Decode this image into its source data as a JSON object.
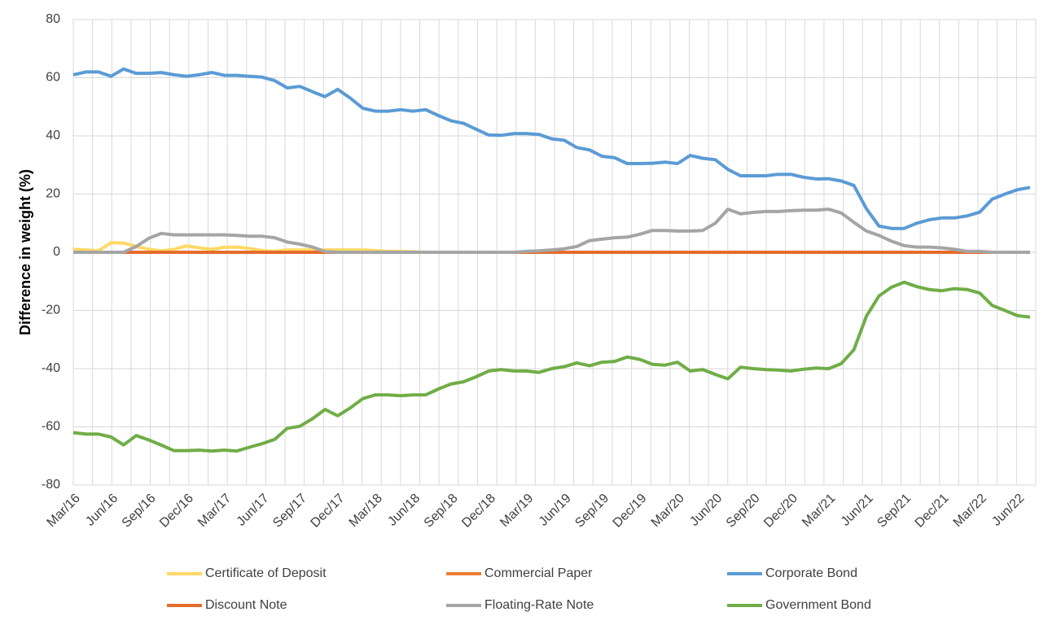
{
  "chart_data": {
    "type": "line",
    "y_label": "Difference in weight (%)",
    "categories": [
      "Mar/16",
      null,
      null,
      "Jun/16",
      null,
      null,
      "Sep/16",
      null,
      null,
      "Dec/16",
      null,
      null,
      "Mar/17",
      null,
      null,
      "Jun/17",
      null,
      null,
      "Sep/17",
      null,
      null,
      "Dec/17",
      null,
      null,
      "Mar/18",
      null,
      null,
      "Jun/18",
      null,
      null,
      "Sep/18",
      null,
      null,
      "Dec/18",
      null,
      null,
      "Mar/19",
      null,
      null,
      "Jun/19",
      null,
      null,
      "Sep/19",
      null,
      null,
      "Dec/19",
      null,
      null,
      "Mar/20",
      null,
      null,
      "Jun/20",
      null,
      null,
      "Sep/20",
      null,
      null,
      "Dec/20",
      null,
      null,
      "Mar/21",
      null,
      null,
      "Jun/21",
      null,
      null,
      "Sep/21",
      null,
      null,
      "Dec/21",
      null,
      null,
      "Mar/22",
      null,
      null,
      "Jun/22",
      null
    ],
    "ylim": [
      -80,
      80
    ],
    "yticks": [
      -80,
      -60,
      -40,
      -20,
      0,
      20,
      40,
      60,
      80
    ],
    "grid": true,
    "legend": "bottom",
    "series": [
      {
        "name": "Certificate of Deposit",
        "color": "#ffd966",
        "values": [
          1,
          0.8,
          0.5,
          3.3,
          3.2,
          2,
          1,
          0.5,
          1,
          2.2,
          1.5,
          1,
          1.7,
          1.8,
          1.3,
          0.6,
          0.3,
          0.8,
          0.8,
          0.8,
          0.8,
          0.8,
          0.8,
          0.8,
          0.6,
          0.3,
          0.3,
          0.2,
          0,
          0,
          0,
          0,
          0,
          0,
          0,
          0,
          0,
          0,
          0,
          0,
          0,
          0,
          0,
          0,
          0,
          0,
          0,
          0,
          0,
          0,
          0,
          0,
          0,
          0,
          0,
          0,
          0,
          0,
          0,
          0,
          0,
          0,
          0,
          0,
          0,
          0,
          0,
          0,
          0,
          0,
          0,
          0,
          0,
          0,
          0,
          0,
          0
        ]
      },
      {
        "name": "Commercial Paper",
        "color": "#ed7d31",
        "values": [
          0,
          0,
          0,
          0,
          0,
          0,
          0,
          0,
          0,
          0,
          0,
          0,
          0,
          0,
          0,
          0,
          0,
          0,
          0,
          0,
          0,
          0,
          0,
          0,
          0,
          0,
          0,
          0,
          0,
          0,
          0,
          0,
          0,
          0,
          0,
          0,
          0,
          0,
          0,
          0,
          0,
          0,
          0,
          0,
          0,
          0,
          0,
          0,
          0,
          0,
          0,
          0,
          0,
          0,
          0,
          0,
          0,
          0,
          0,
          0,
          0,
          0,
          0,
          0,
          0,
          0,
          0,
          0,
          0,
          0,
          0,
          0,
          0,
          0,
          0,
          0,
          0
        ]
      },
      {
        "name": "Corporate Bond",
        "color": "#5b9bd5",
        "values": [
          61,
          62,
          62,
          60.5,
          63,
          61.5,
          61.5,
          61.8,
          61,
          60.5,
          61,
          61.8,
          60.8,
          60.8,
          60.5,
          60.2,
          59,
          56.5,
          57,
          55.2,
          53.5,
          56,
          53,
          49.5,
          48.5,
          48.5,
          49,
          48.5,
          49,
          47,
          45.2,
          44.3,
          42.3,
          40.3,
          40.2,
          40.8,
          40.8,
          40.5,
          39,
          38.5,
          36,
          35.2,
          33,
          32.5,
          30.5,
          30.5,
          30.6,
          31,
          30.5,
          33.3,
          32.3,
          31.8,
          28.5,
          26.3,
          26.3,
          26.3,
          26.8,
          26.8,
          25.8,
          25.2,
          25.3,
          24.5,
          23,
          15,
          9,
          8.2,
          8.2,
          10,
          11.2,
          11.8,
          11.8,
          12.5,
          13.8,
          18.3,
          20,
          21.5,
          22.3
        ]
      },
      {
        "name": "Discount Note",
        "color": "#e46c2a",
        "values": [
          0,
          0,
          0,
          0,
          0,
          0,
          0,
          0,
          0,
          0,
          0,
          0,
          0,
          0,
          0,
          0,
          0,
          0,
          0,
          0,
          0,
          0,
          0,
          0,
          0,
          0,
          0,
          0,
          0,
          0,
          0,
          0,
          0,
          0,
          0,
          0,
          0,
          0,
          0,
          0,
          0,
          0,
          0,
          0,
          0,
          0,
          0,
          0,
          0,
          0,
          0,
          0,
          0,
          0,
          0,
          0,
          0,
          0,
          0,
          0,
          0,
          0,
          0,
          0,
          0,
          0,
          0,
          0,
          0,
          0,
          0,
          0,
          0,
          0,
          0,
          0,
          0
        ]
      },
      {
        "name": "Floating-Rate Note",
        "color": "#a5a5a5",
        "values": [
          0,
          0,
          0,
          0,
          0,
          2,
          4.8,
          6.5,
          6,
          6,
          6,
          6,
          6,
          5.8,
          5.5,
          5.5,
          5,
          3.5,
          2.8,
          1.8,
          0.2,
          0,
          0,
          0,
          0,
          0,
          0,
          0,
          0,
          0,
          0,
          0,
          0,
          0,
          0,
          0,
          0.3,
          0.5,
          0.8,
          1.2,
          2,
          4,
          4.5,
          5,
          5.2,
          6.2,
          7.5,
          7.5,
          7.3,
          7.3,
          7.5,
          10,
          14.8,
          13.2,
          13.7,
          14,
          14,
          14.3,
          14.5,
          14.5,
          14.8,
          13.5,
          10.3,
          7.3,
          5.8,
          3.8,
          2.3,
          1.8,
          1.8,
          1.5,
          1,
          0.3,
          0.3,
          0,
          0,
          0,
          0
        ]
      },
      {
        "name": "Government Bond",
        "color": "#70ad47",
        "values": [
          -62,
          -62.5,
          -62.5,
          -63.5,
          -66.2,
          -63,
          -64.5,
          -66.3,
          -68.2,
          -68.2,
          -68,
          -68.3,
          -68,
          -68.3,
          -67,
          -65.8,
          -64.3,
          -60.5,
          -59.8,
          -57.2,
          -54,
          -56.2,
          -53.5,
          -50.3,
          -49,
          -49,
          -49.3,
          -49,
          -49,
          -47,
          -45.3,
          -44.5,
          -42.8,
          -40.8,
          -40.3,
          -40.8,
          -40.8,
          -41.3,
          -40,
          -39.3,
          -38,
          -39,
          -37.8,
          -37.5,
          -36,
          -36.8,
          -38.5,
          -38.8,
          -37.8,
          -40.8,
          -40.3,
          -42,
          -43.5,
          -39.5,
          -40,
          -40.3,
          -40.5,
          -40.8,
          -40.2,
          -39.8,
          -40,
          -38.3,
          -33.5,
          -22,
          -15,
          -12,
          -10.3,
          -11.8,
          -12.8,
          -13.2,
          -12.5,
          -12.8,
          -14,
          -18.3,
          -20,
          -21.8,
          -22.3
        ]
      }
    ]
  }
}
